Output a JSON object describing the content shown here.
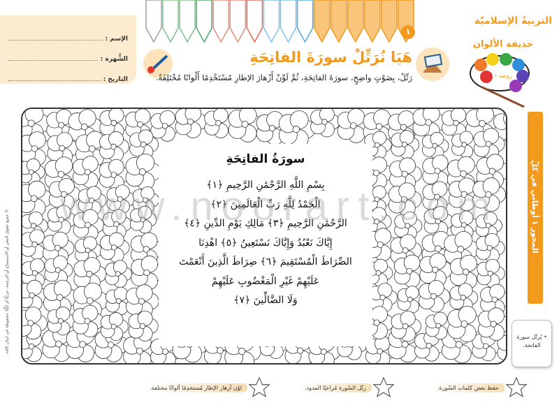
{
  "header": {
    "subject": "التربيةُ الإسلاميّة",
    "logo_text": "حديقة الألوان",
    "logo_level": "روضة ١",
    "page_number": "١",
    "accent_color": "#f29a1e"
  },
  "student_info": {
    "name_label": "الإسم :",
    "family_label": "الشُّهرة :",
    "date_label": "التاريخ :"
  },
  "lesson": {
    "title": "هَيَا نُرَتِّلْ سورَةَ الفاتِحَةِ",
    "instruction": "رَتِّلْ، بِصَوْتٍ واضِحٍ، سورَةَ الفاتِحَةِ، ثُمَّ لَوِّنْ أَزْهارَ الإطارِ مُسْتَخْدِمًا أَلْوانًا مُخْتَلِفَةً."
  },
  "surah": {
    "title": "سورَةُ الفاتِحَةِ",
    "lines": [
      "بِسْمِ اللَّهِ الرَّحْمَٰنِ الرَّحِيمِ ﴿١﴾",
      "الْحَمْدُ لِلَّهِ رَبِّ الْعَالَمِينَ ﴿٢﴾",
      "الرَّحْمَٰنِ الرَّحِيمِ ﴿٣﴾ مَالِكِ يَوْمِ الدِّينِ ﴿٤﴾",
      "إِيَّاكَ نَعْبُدُ وَإِيَّاكَ نَسْتَعِينُ ﴿٥﴾ اهْدِنَا",
      "الصِّرَاطَ الْمُسْتَقِيمَ ﴿٦﴾ صِرَاطَ الَّذِينَ أَنْعَمْتَ",
      "عَلَيْهِمْ غَيْرِ الْمَغْضُوبِ عَلَيْهِمْ",
      "وَلَا الضَّالِّينَ ﴿٧﴾"
    ]
  },
  "side_strip": {
    "text": "المحور ١ أوطاني في كلّ مكان"
  },
  "objective": {
    "text": "• يُرتّل سورة الفاتحة."
  },
  "goals": [
    {
      "text": "حفظ بعض كلمات السّورة.",
      "icon": "star-icon"
    },
    {
      "text": "رتّل السّورة مُراعيًا المدود.",
      "icon": "star-icon"
    },
    {
      "text": "لوّن أزهار الإطار مُستخدِمًا ألوانًا مختلفة.",
      "icon": "star-icon"
    }
  ],
  "watermark": "www.noorart.com",
  "copyright": "© جميع حقوق النشر أو الاستنساخ أو الترجمة، جزئيًّا أو كلّيًّا، محفوظة في لبنان كافة."
}
